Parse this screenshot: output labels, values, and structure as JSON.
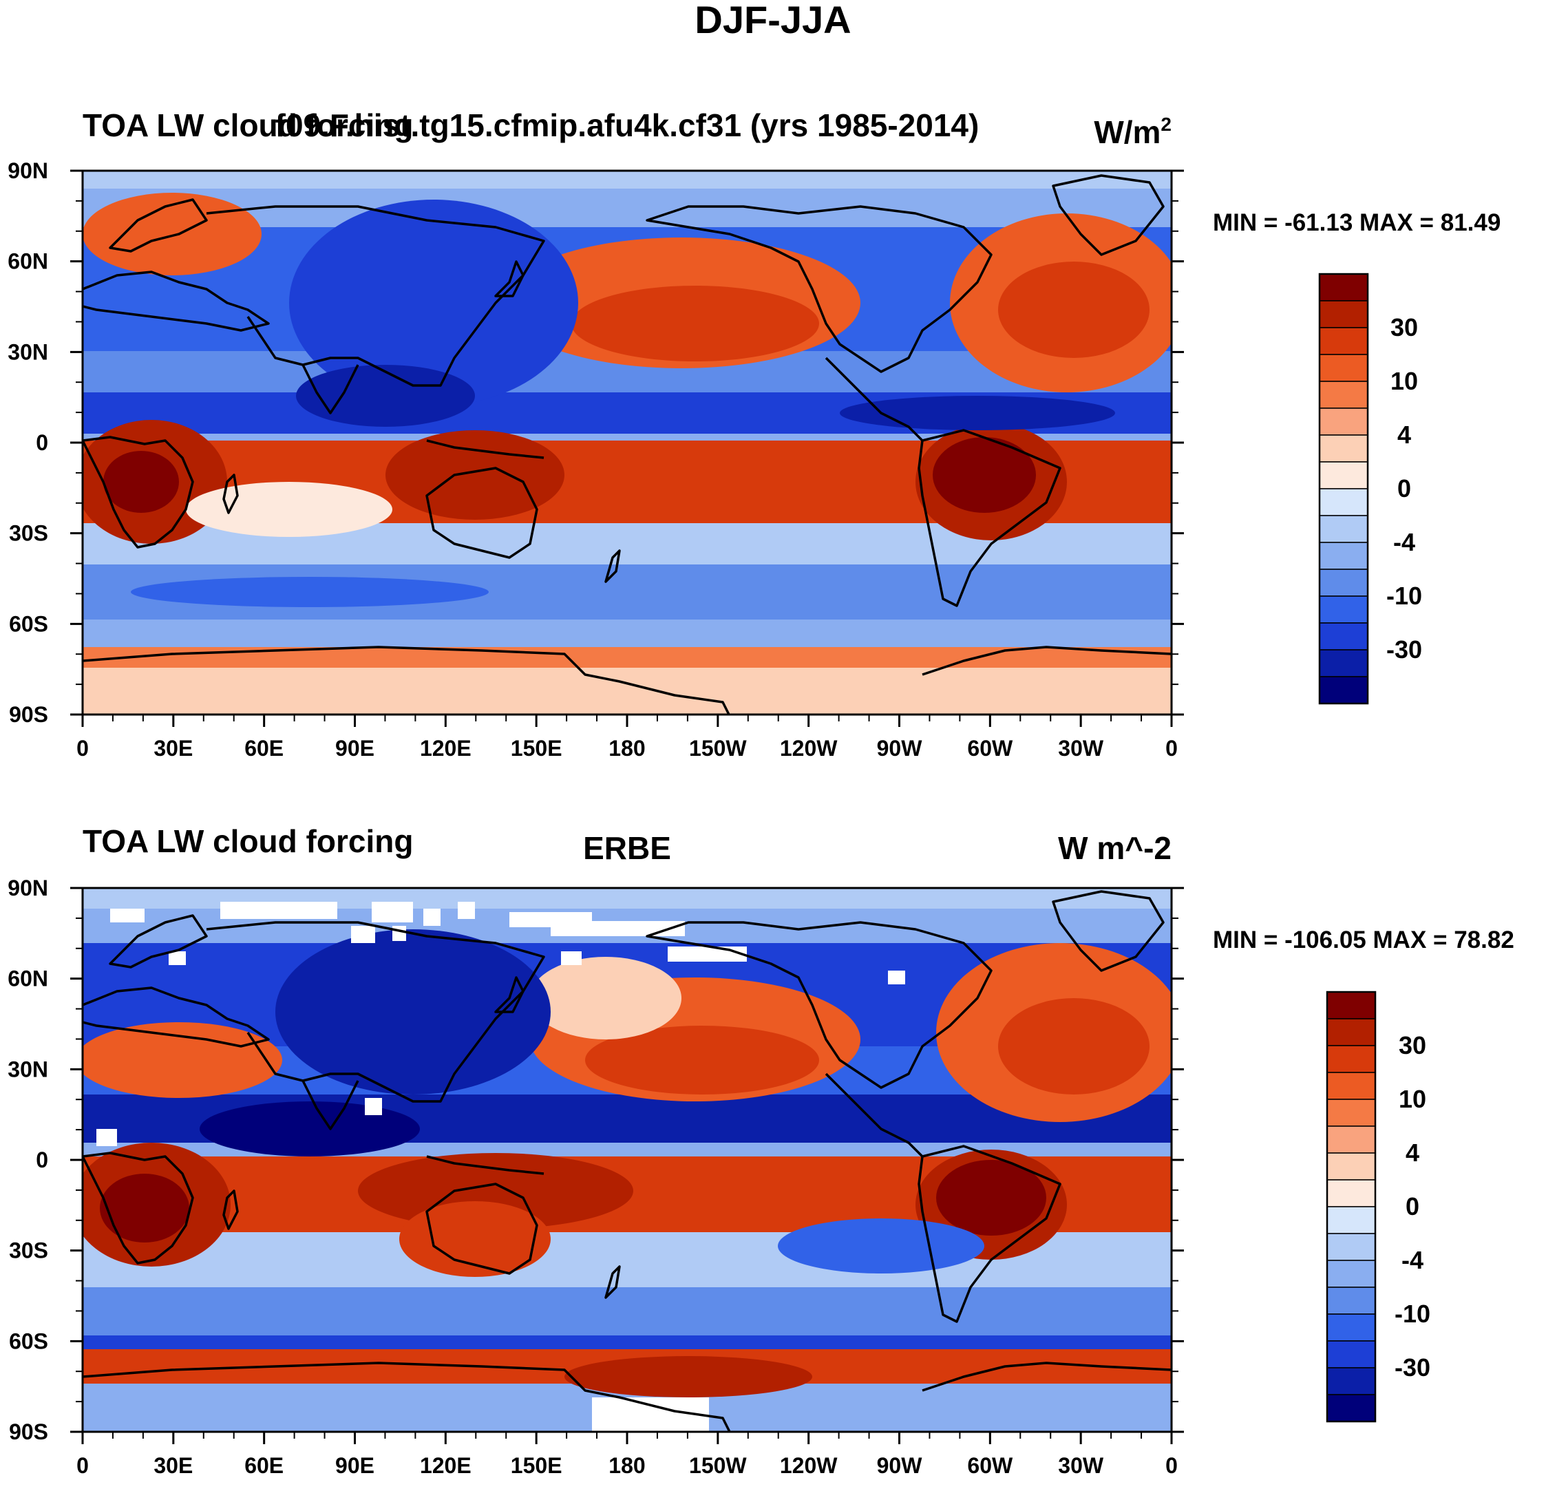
{
  "figure_title": "DJF-JJA",
  "colors": {
    "continents": "#000000",
    "frame": "#000000",
    "missing": "#ffffff"
  },
  "chart_data": [
    {
      "type": "heatmap",
      "name": "model",
      "left_title": "TOA LW cloud forcing",
      "center_title": "f09.F.hist.tg15.cfmip.afu4k.cf31 (yrs 1985-2014)",
      "units": "W/m",
      "units_superscript": "2",
      "stats": {
        "min_label": "MIN =",
        "min": "-61.13",
        "max_label": "MAX =",
        "max": "81.49"
      },
      "x_ticks": [
        "0",
        "30E",
        "60E",
        "90E",
        "120E",
        "150E",
        "180",
        "150W",
        "120W",
        "90W",
        "60W",
        "30W",
        "0"
      ],
      "y_ticks": [
        "90N",
        "60N",
        "30N",
        "0",
        "30S",
        "60S",
        "90S"
      ],
      "xlim": [
        0,
        360
      ],
      "ylim": [
        -90,
        90
      ]
    },
    {
      "type": "heatmap",
      "name": "obs",
      "left_title": "TOA LW cloud forcing",
      "center_title": "ERBE",
      "units": "W m^-2",
      "units_superscript": "",
      "stats": {
        "min_label": "MIN =",
        "min": "-106.05",
        "max_label": "MAX =",
        "max": "78.82"
      },
      "x_ticks": [
        "0",
        "30E",
        "60E",
        "90E",
        "120E",
        "150E",
        "180",
        "150W",
        "120W",
        "90W",
        "60W",
        "30W",
        "0"
      ],
      "y_ticks": [
        "90N",
        "60N",
        "30N",
        "0",
        "30S",
        "60S",
        "90S"
      ],
      "xlim": [
        0,
        360
      ],
      "ylim": [
        -90,
        90
      ]
    }
  ],
  "colorbar": {
    "labels": [
      "30",
      "10",
      "4",
      "0",
      "-4",
      "-10",
      "-30"
    ],
    "level_values": [
      40,
      30,
      20,
      10,
      7,
      4,
      2,
      0,
      -2,
      -4,
      -7,
      -10,
      -20,
      -30,
      -40
    ],
    "colors": [
      "#7f0000",
      "#b22000",
      "#d73a0c",
      "#ec5b23",
      "#f47a45",
      "#f9a37e",
      "#fcd0b6",
      "#fde9dd",
      "#d6e6fb",
      "#b0cbf5",
      "#8aaef0",
      "#5f8cea",
      "#3162e8",
      "#1d3fd6",
      "#0b1fa8",
      "#00007a"
    ]
  }
}
